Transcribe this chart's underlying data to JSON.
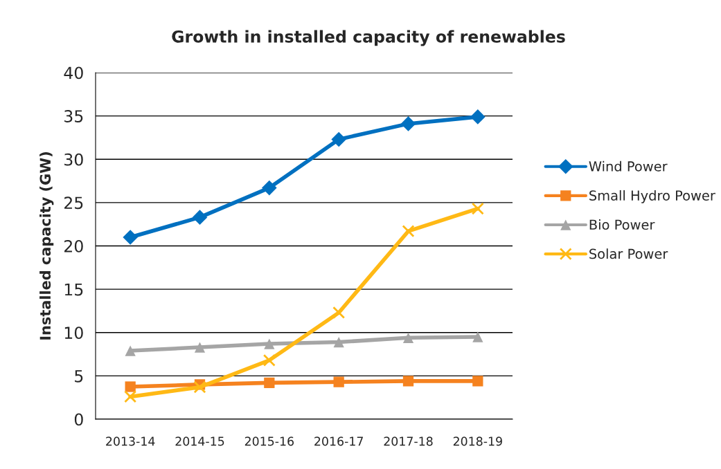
{
  "chart_data": {
    "type": "line",
    "title": "Growth in installed capacity of renewables",
    "ylabel": "Installed capacity (GW)",
    "categories": [
      "2013-14",
      "2014-15",
      "2015-16",
      "2016-17",
      "2017-18",
      "2018-19"
    ],
    "series": [
      {
        "name": "Wind Power",
        "color": "#0070c0",
        "marker": "diamond",
        "values": [
          21.0,
          23.3,
          26.7,
          32.3,
          34.1,
          34.9
        ]
      },
      {
        "name": "Small Hydro Power",
        "color": "#f5821f",
        "marker": "square",
        "values": [
          3.75,
          4.0,
          4.2,
          4.3,
          4.4,
          4.4
        ]
      },
      {
        "name": "Bio Power",
        "color": "#a5a5a5",
        "marker": "triangle",
        "values": [
          7.9,
          8.3,
          8.7,
          8.9,
          9.4,
          9.5
        ]
      },
      {
        "name": "Solar Power",
        "color": "#ffb915",
        "marker": "cross",
        "values": [
          2.6,
          3.7,
          6.8,
          12.3,
          21.7,
          24.3
        ]
      }
    ],
    "ylim": [
      0,
      40
    ],
    "yticks": [
      0,
      5,
      10,
      15,
      20,
      25,
      30,
      35,
      40
    ],
    "grid": "y",
    "legend": "right"
  }
}
